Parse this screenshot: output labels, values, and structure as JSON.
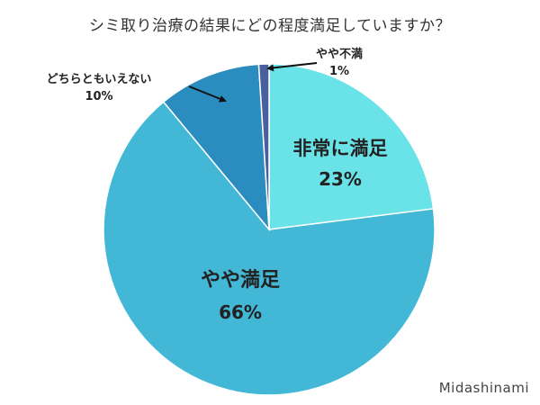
{
  "chart_data": {
    "type": "pie",
    "title": "シミ取り治療の結果にどの程度満足していますか？",
    "slices": [
      {
        "label": "非常に満足",
        "value": 23,
        "value_label": "23%",
        "color": "#6ae3e8"
      },
      {
        "label": "やや満足",
        "value": 66,
        "value_label": "66%",
        "color": "#43b7d6"
      },
      {
        "label": "どちらともいえない",
        "value": 10,
        "value_label": "10%",
        "color": "#2a8cbf"
      },
      {
        "label": "やや不満",
        "value": 1,
        "value_label": "1%",
        "color": "#4a5f9e"
      }
    ],
    "start_angle_deg": 0,
    "direction": "clockwise"
  },
  "colors": {
    "slice_edge": "#ffffff",
    "label_text": "#222222",
    "arrow": "#111111"
  },
  "watermark": "Midashinami"
}
